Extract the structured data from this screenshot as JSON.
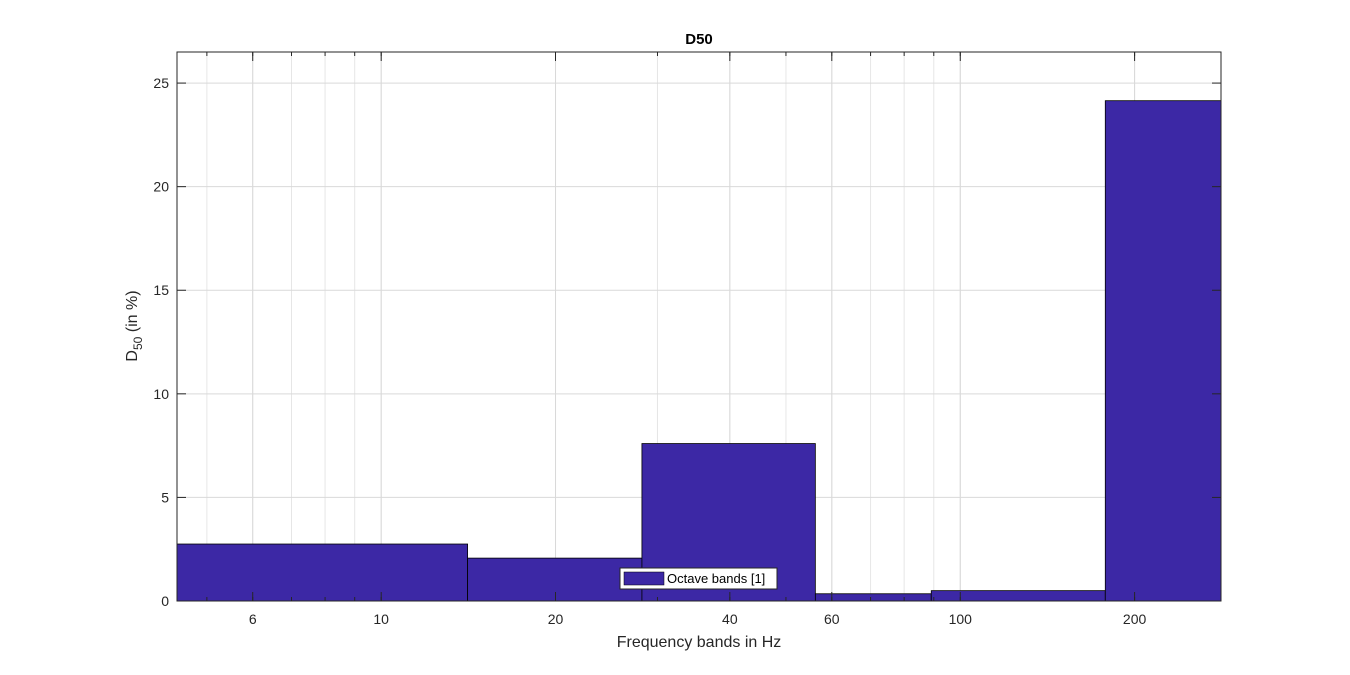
{
  "chart_data": {
    "type": "bar",
    "title": "D50",
    "xlabel": "Frequency bands in Hz",
    "ylabel_main": "D",
    "ylabel_sub": "50",
    "ylabel_rest": " (in %)",
    "x_scale": "log",
    "xlim": [
      4.44,
      282
    ],
    "ylim": [
      0,
      26.5
    ],
    "grid": true,
    "x_ticks": [
      6,
      10,
      20,
      40,
      60,
      100,
      200
    ],
    "x_tick_labels": [
      "6",
      "10",
      "20",
      "40",
      "60",
      "100",
      "200"
    ],
    "y_ticks": [
      0,
      5,
      10,
      15,
      20,
      25
    ],
    "y_tick_labels": [
      "0",
      "5",
      "10",
      "15",
      "20",
      "25"
    ],
    "bar_color": "#3C28A5",
    "legend_placement": "bottom-center",
    "series": [
      {
        "name": "Octave bands [1]",
        "bars": [
          {
            "from": 4.44,
            "to": 14.1,
            "value": 2.75
          },
          {
            "from": 14.1,
            "to": 28.2,
            "value": 2.07
          },
          {
            "from": 28.2,
            "to": 56.2,
            "value": 7.6
          },
          {
            "from": 56.2,
            "to": 89.1,
            "value": 0.35
          },
          {
            "from": 89.1,
            "to": 178,
            "value": 0.5
          },
          {
            "from": 178,
            "to": 282,
            "value": 24.15
          }
        ]
      }
    ]
  }
}
